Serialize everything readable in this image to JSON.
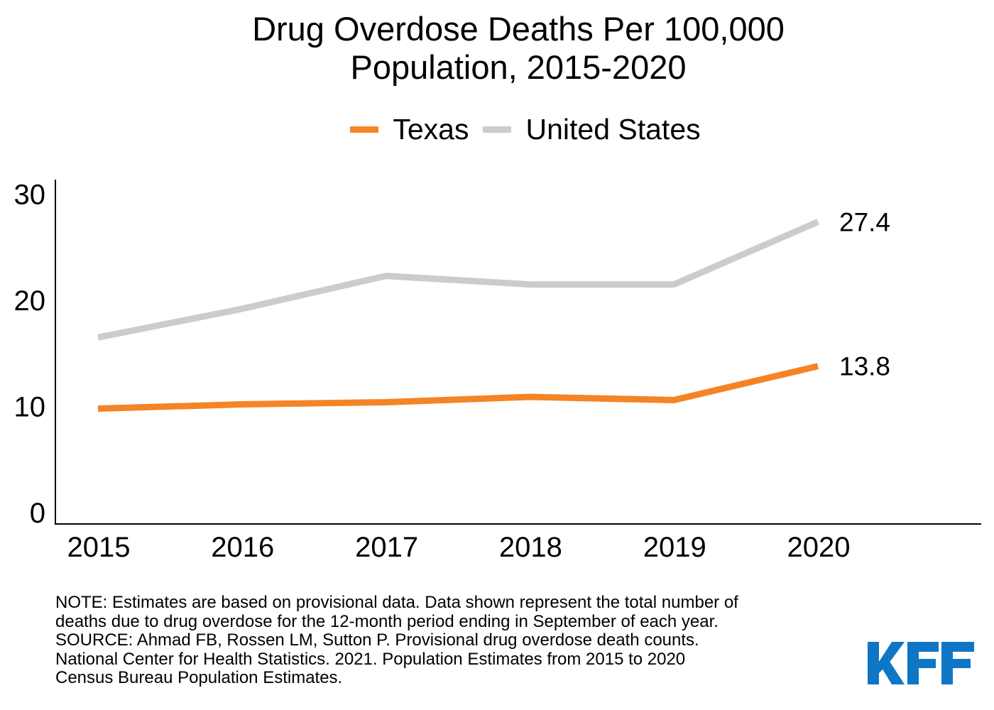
{
  "chart_data": {
    "type": "line",
    "title_lines": [
      "Drug Overdose Deaths Per 100,000",
      "Population, 2015-2020"
    ],
    "x": [
      "2015",
      "2016",
      "2017",
      "2018",
      "2019",
      "2020"
    ],
    "series": [
      {
        "name": "Texas",
        "color": "#f58426",
        "values": [
          9.8,
          10.2,
          10.4,
          10.9,
          10.6,
          13.8
        ],
        "end_label": "13.8"
      },
      {
        "name": "United States",
        "color": "#cccccc",
        "values": [
          16.5,
          19.2,
          22.3,
          21.5,
          21.5,
          27.4
        ],
        "end_label": "27.4"
      }
    ],
    "ylim": [
      0,
      30
    ],
    "yticks": [
      "0",
      "10",
      "20",
      "30"
    ],
    "xlabel": "",
    "ylabel": "",
    "grid": false,
    "legend_position": "top-center"
  },
  "note_lines": [
    "NOTE: Estimates are based on provisional data. Data shown represent the total number of",
    "deaths due to drug overdose for the 12-month period ending in September of each year.",
    "SOURCE: Ahmad FB, Rossen LM, Sutton P. Provisional drug overdose death counts.",
    "National Center for Health Statistics. 2021. Population Estimates from 2015 to 2020",
    "Census Bureau Population Estimates."
  ],
  "logo": {
    "text": "KFF",
    "color": "#0f76c6"
  }
}
